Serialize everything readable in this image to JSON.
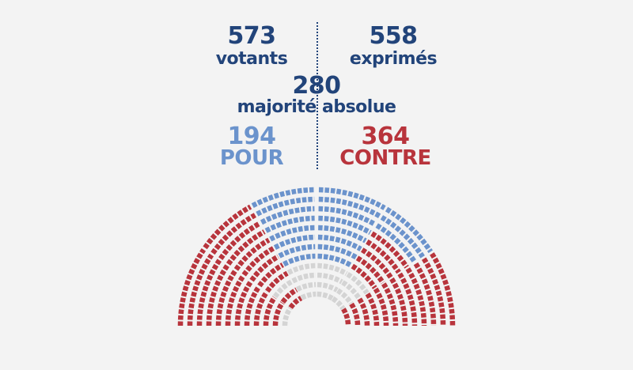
{
  "vote": {
    "votants": {
      "value": "573",
      "label": "votants"
    },
    "exprimes": {
      "value": "558",
      "label": "exprimés"
    },
    "majorite": {
      "value": "280",
      "label": "majorité absolue"
    },
    "pour": {
      "value": "194",
      "label": "POUR"
    },
    "contre": {
      "value": "364",
      "label": "CONTRE"
    }
  },
  "colors": {
    "navy": "#22447a",
    "pour": "#6b93cc",
    "contre": "#b8343c",
    "abstention": "#d4d4d4",
    "background": "#f3f3f3"
  }
}
